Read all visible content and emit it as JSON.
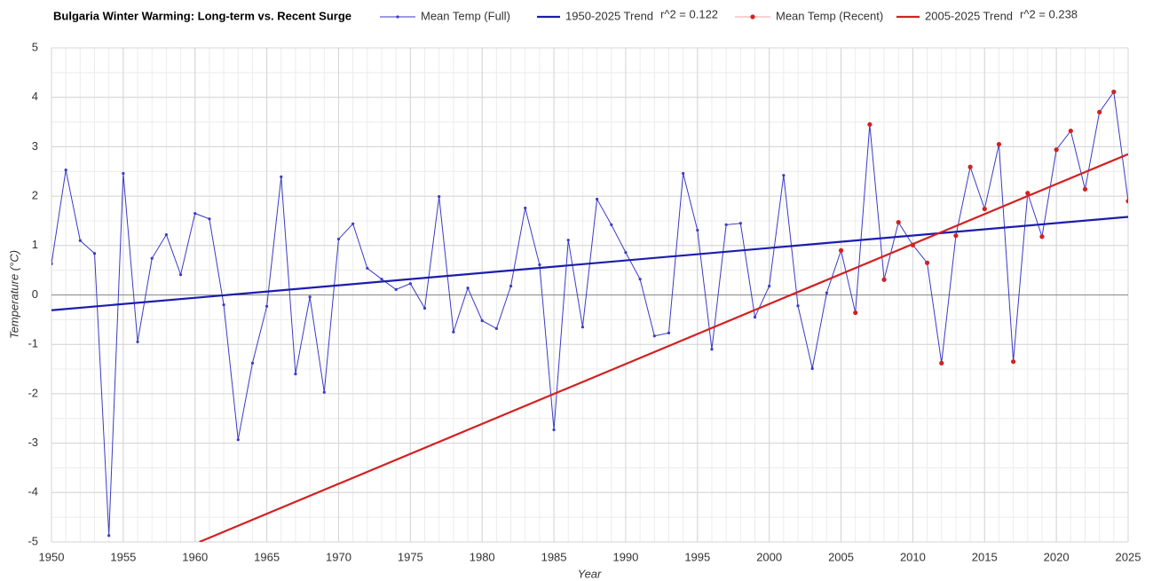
{
  "chart_data": {
    "type": "line",
    "title": "Bulgaria Winter Warming: Long-term vs. Recent Surge",
    "x_label": "Year",
    "y_label": "Temperature (°C)",
    "xlim": [
      1950,
      2025
    ],
    "xticks": [
      1950,
      1955,
      1960,
      1965,
      1970,
      1975,
      1980,
      1985,
      1990,
      1995,
      2000,
      2005,
      2010,
      2015,
      2020,
      2025
    ],
    "ylim": [
      -5,
      5
    ],
    "yticks": [
      -5,
      -4,
      -3,
      -2,
      -1,
      0,
      1,
      2,
      3,
      4,
      5
    ],
    "grid": true,
    "series": [
      {
        "name": "Mean Temp (Full)",
        "color": "#3a3ac8",
        "style": "line-markers",
        "x": [
          1950,
          1951,
          1952,
          1953,
          1954,
          1955,
          1956,
          1957,
          1958,
          1959,
          1960,
          1961,
          1962,
          1963,
          1964,
          1965,
          1966,
          1967,
          1968,
          1969,
          1970,
          1971,
          1972,
          1973,
          1974,
          1975,
          1976,
          1977,
          1978,
          1979,
          1980,
          1981,
          1982,
          1983,
          1984,
          1985,
          1986,
          1987,
          1988,
          1989,
          1990,
          1991,
          1992,
          1993,
          1994,
          1995,
          1996,
          1997,
          1998,
          1999,
          2000,
          2001,
          2002,
          2003,
          2004,
          2005,
          2006,
          2007,
          2008,
          2009,
          2010,
          2011,
          2012,
          2013,
          2014,
          2015,
          2016,
          2017,
          2018,
          2019,
          2020,
          2021,
          2022,
          2023,
          2024,
          2025
        ],
        "values": [
          0.63,
          2.53,
          1.1,
          0.84,
          -4.87,
          2.46,
          -0.95,
          0.74,
          1.22,
          0.41,
          1.65,
          1.54,
          -0.2,
          -2.93,
          -1.38,
          -0.23,
          2.39,
          -1.6,
          -0.04,
          -1.97,
          1.13,
          1.44,
          0.54,
          0.32,
          0.11,
          0.23,
          -0.27,
          1.99,
          -0.75,
          0.14,
          -0.52,
          -0.68,
          0.18,
          1.76,
          0.61,
          -2.73,
          1.11,
          -0.65,
          1.94,
          1.42,
          0.86,
          0.32,
          -0.83,
          -0.77,
          2.46,
          1.31,
          -1.1,
          1.42,
          1.45,
          -0.45,
          0.18,
          2.42,
          -0.22,
          -1.49,
          0.04,
          0.9,
          -0.36,
          3.45,
          0.31,
          1.47,
          1.01,
          0.65,
          -1.38,
          1.2,
          2.59,
          1.74,
          3.05,
          -1.35,
          2.06,
          1.18,
          2.94,
          3.32,
          2.14,
          3.7,
          4.11,
          1.9
        ]
      },
      {
        "name": "1950-2025 Trend",
        "color": "#1c1cae",
        "style": "line",
        "annotation": "r^2 = 0.122",
        "x": [
          1950,
          2025
        ],
        "values": [
          -0.31,
          1.58
        ]
      },
      {
        "name": "Mean Temp (Recent)",
        "color": "#d42020",
        "style": "markers",
        "x": [
          2005,
          2006,
          2007,
          2008,
          2009,
          2010,
          2011,
          2012,
          2013,
          2014,
          2015,
          2016,
          2017,
          2018,
          2019,
          2020,
          2021,
          2022,
          2023,
          2024,
          2025
        ],
        "values": [
          0.9,
          -0.36,
          3.45,
          0.31,
          1.47,
          1.01,
          0.65,
          -1.38,
          1.2,
          2.59,
          1.74,
          3.05,
          -1.35,
          2.06,
          1.18,
          2.94,
          3.32,
          2.14,
          3.7,
          4.11,
          1.9
        ]
      },
      {
        "name": "2005-2025 Trend",
        "color": "#d42020",
        "style": "line",
        "annotation": "r^2 = 0.238",
        "x": [
          1960.3,
          2025
        ],
        "values": [
          -5,
          2.85
        ]
      }
    ]
  }
}
